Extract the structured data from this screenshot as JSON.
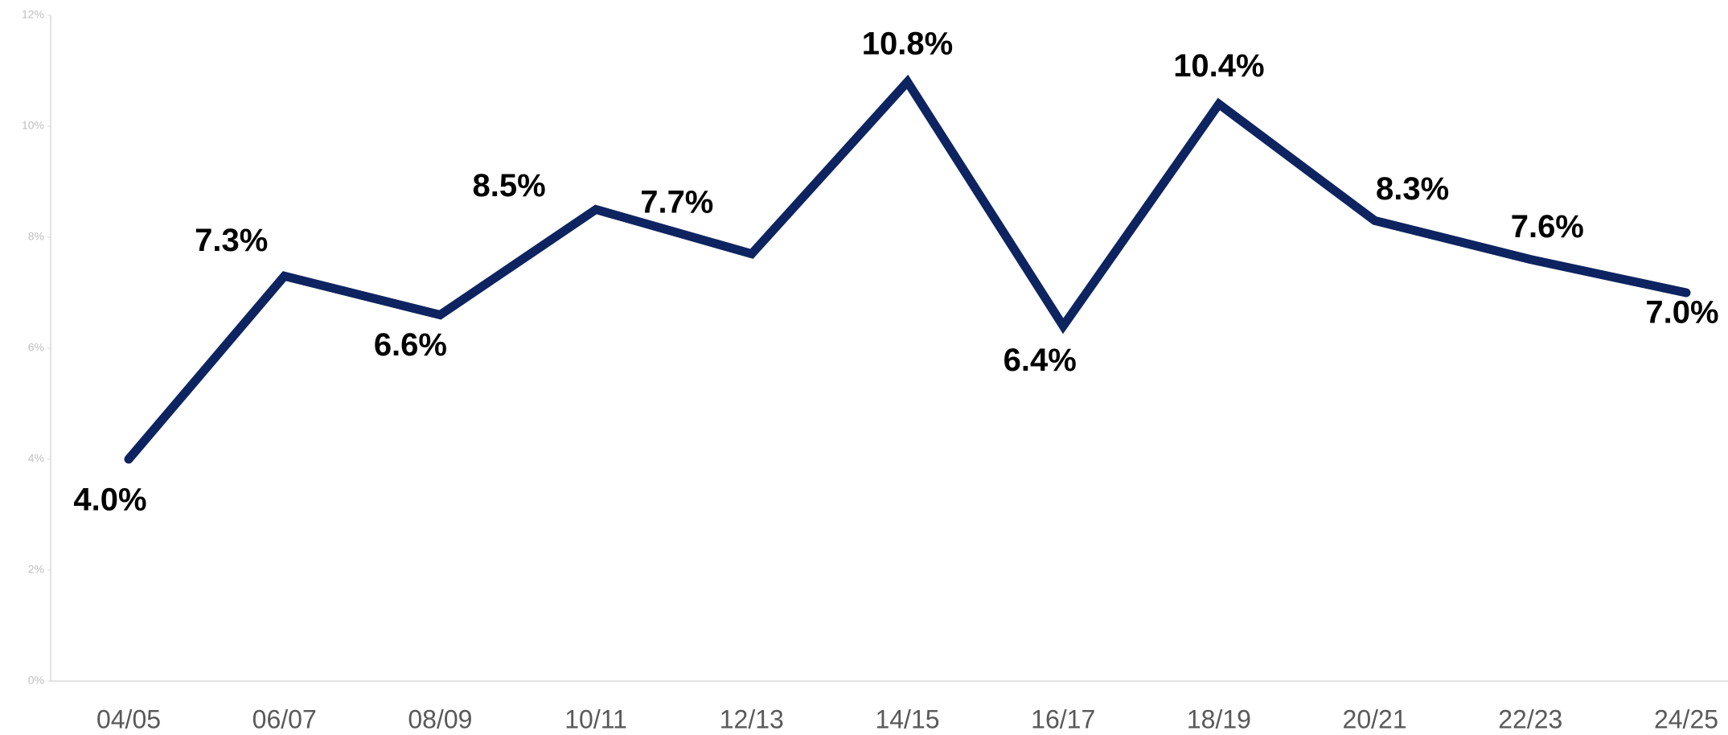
{
  "chart_data": {
    "type": "line",
    "categories": [
      "04/05",
      "06/07",
      "08/09",
      "10/11",
      "12/13",
      "14/15",
      "16/17",
      "18/19",
      "20/21",
      "22/23",
      "24/25"
    ],
    "series": [
      {
        "color": "#0d2460",
        "values": [
          4.0,
          7.3,
          6.6,
          8.5,
          7.7,
          10.8,
          6.4,
          10.4,
          8.3,
          7.6,
          7.0
        ],
        "value_labels": [
          "4.0%",
          "7.3%",
          "6.6%",
          "8.5%",
          "7.7%",
          "10.8%",
          "6.4%",
          "10.4%",
          "8.3%",
          "7.6%",
          "7.0%"
        ]
      }
    ],
    "ylim": [
      0,
      12
    ],
    "yticks": [
      {
        "value": 0,
        "label": "0%"
      },
      {
        "value": 2,
        "label": "2%"
      },
      {
        "value": 4,
        "label": "4%"
      },
      {
        "value": 6,
        "label": "6%"
      },
      {
        "value": 8,
        "label": "8%"
      },
      {
        "value": 10,
        "label": "10%"
      },
      {
        "value": 12,
        "label": "12%"
      }
    ],
    "grid": false
  }
}
